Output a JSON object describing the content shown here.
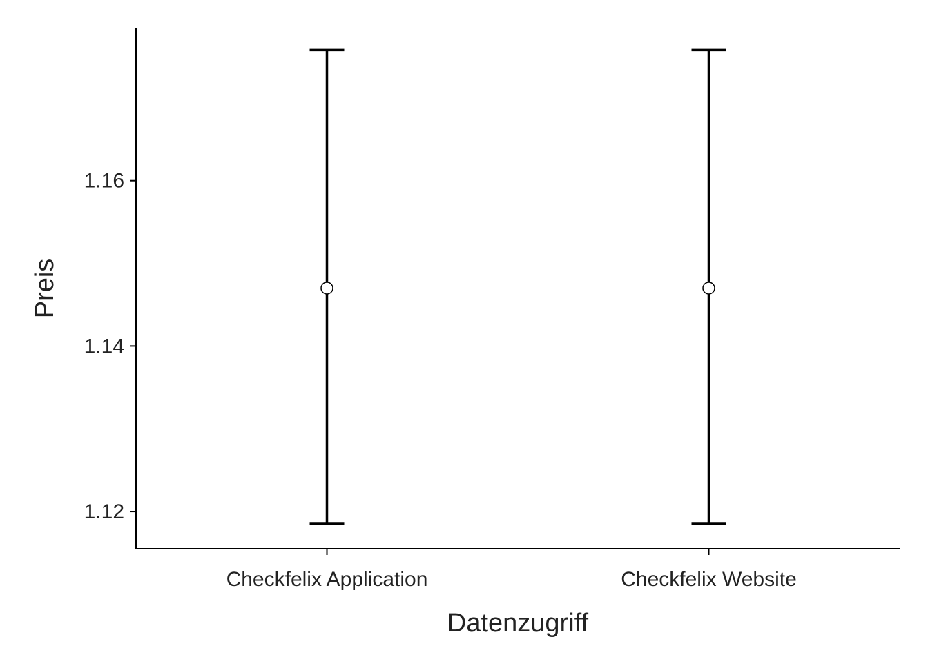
{
  "chart_data": {
    "type": "errorbar",
    "title": "",
    "xlabel": "Datenzugriff",
    "ylabel": "Preis",
    "categories": [
      "Checkfelix Application",
      "Checkfelix Website"
    ],
    "series": [
      {
        "values": [
          1.147,
          1.147
        ],
        "lower": [
          1.1185,
          1.1185
        ],
        "upper": [
          1.1758,
          1.1758
        ]
      }
    ],
    "ylim": [
      1.1155,
      1.1785
    ],
    "yticks": [
      1.12,
      1.14,
      1.16
    ],
    "ytick_labels": [
      "1.12",
      "1.14",
      "1.16"
    ],
    "grid": false,
    "legend": "none",
    "colors": {
      "line": "#000000",
      "point_fill": "#ffffff",
      "axis": "#000000",
      "text": "#222222"
    }
  }
}
